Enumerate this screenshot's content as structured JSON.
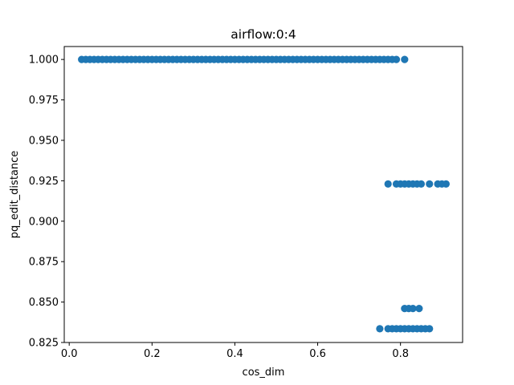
{
  "chart_data": {
    "type": "scatter",
    "title": "airflow:0:4",
    "xlabel": "cos_dim",
    "ylabel": "pq_edit_distance",
    "xlim": [
      -0.012,
      0.95
    ],
    "ylim": [
      0.825,
      1.008
    ],
    "grid": false,
    "legend": "none",
    "marker_color": "#1f77b4",
    "x_ticks": [
      {
        "value": 0.0,
        "label": "0.0"
      },
      {
        "value": 0.2,
        "label": "0.2"
      },
      {
        "value": 0.4,
        "label": "0.4"
      },
      {
        "value": 0.6,
        "label": "0.6"
      },
      {
        "value": 0.8,
        "label": "0.8"
      }
    ],
    "y_ticks": [
      {
        "value": 0.825,
        "label": "0.825"
      },
      {
        "value": 0.85,
        "label": "0.850"
      },
      {
        "value": 0.875,
        "label": "0.875"
      },
      {
        "value": 0.9,
        "label": "0.900"
      },
      {
        "value": 0.925,
        "label": "0.925"
      },
      {
        "value": 0.95,
        "label": "0.950"
      },
      {
        "value": 0.975,
        "label": "0.975"
      },
      {
        "value": 1.0,
        "label": "1.000"
      }
    ],
    "series": [
      {
        "points": [
          [
            0.03,
            1.0
          ],
          [
            0.04,
            1.0
          ],
          [
            0.05,
            1.0
          ],
          [
            0.06,
            1.0
          ],
          [
            0.07,
            1.0
          ],
          [
            0.08,
            1.0
          ],
          [
            0.09,
            1.0
          ],
          [
            0.1,
            1.0
          ],
          [
            0.11,
            1.0
          ],
          [
            0.12,
            1.0
          ],
          [
            0.13,
            1.0
          ],
          [
            0.14,
            1.0
          ],
          [
            0.15,
            1.0
          ],
          [
            0.16,
            1.0
          ],
          [
            0.17,
            1.0
          ],
          [
            0.18,
            1.0
          ],
          [
            0.19,
            1.0
          ],
          [
            0.2,
            1.0
          ],
          [
            0.21,
            1.0
          ],
          [
            0.22,
            1.0
          ],
          [
            0.23,
            1.0
          ],
          [
            0.24,
            1.0
          ],
          [
            0.25,
            1.0
          ],
          [
            0.26,
            1.0
          ],
          [
            0.27,
            1.0
          ],
          [
            0.28,
            1.0
          ],
          [
            0.29,
            1.0
          ],
          [
            0.3,
            1.0
          ],
          [
            0.31,
            1.0
          ],
          [
            0.32,
            1.0
          ],
          [
            0.33,
            1.0
          ],
          [
            0.34,
            1.0
          ],
          [
            0.35,
            1.0
          ],
          [
            0.36,
            1.0
          ],
          [
            0.37,
            1.0
          ],
          [
            0.38,
            1.0
          ],
          [
            0.39,
            1.0
          ],
          [
            0.4,
            1.0
          ],
          [
            0.41,
            1.0
          ],
          [
            0.42,
            1.0
          ],
          [
            0.43,
            1.0
          ],
          [
            0.44,
            1.0
          ],
          [
            0.45,
            1.0
          ],
          [
            0.46,
            1.0
          ],
          [
            0.47,
            1.0
          ],
          [
            0.48,
            1.0
          ],
          [
            0.49,
            1.0
          ],
          [
            0.5,
            1.0
          ],
          [
            0.51,
            1.0
          ],
          [
            0.52,
            1.0
          ],
          [
            0.53,
            1.0
          ],
          [
            0.54,
            1.0
          ],
          [
            0.55,
            1.0
          ],
          [
            0.56,
            1.0
          ],
          [
            0.57,
            1.0
          ],
          [
            0.58,
            1.0
          ],
          [
            0.59,
            1.0
          ],
          [
            0.6,
            1.0
          ],
          [
            0.61,
            1.0
          ],
          [
            0.62,
            1.0
          ],
          [
            0.63,
            1.0
          ],
          [
            0.64,
            1.0
          ],
          [
            0.65,
            1.0
          ],
          [
            0.66,
            1.0
          ],
          [
            0.67,
            1.0
          ],
          [
            0.68,
            1.0
          ],
          [
            0.69,
            1.0
          ],
          [
            0.7,
            1.0
          ],
          [
            0.71,
            1.0
          ],
          [
            0.72,
            1.0
          ],
          [
            0.73,
            1.0
          ],
          [
            0.74,
            1.0
          ],
          [
            0.75,
            1.0
          ],
          [
            0.76,
            1.0
          ],
          [
            0.77,
            1.0
          ],
          [
            0.78,
            1.0
          ],
          [
            0.79,
            1.0
          ],
          [
            0.81,
            1.0
          ],
          [
            0.77,
            0.923
          ],
          [
            0.79,
            0.923
          ],
          [
            0.8,
            0.923
          ],
          [
            0.81,
            0.923
          ],
          [
            0.82,
            0.923
          ],
          [
            0.83,
            0.923
          ],
          [
            0.84,
            0.923
          ],
          [
            0.85,
            0.923
          ],
          [
            0.87,
            0.923
          ],
          [
            0.89,
            0.923
          ],
          [
            0.9,
            0.923
          ],
          [
            0.91,
            0.923
          ],
          [
            0.81,
            0.846
          ],
          [
            0.82,
            0.846
          ],
          [
            0.83,
            0.846
          ],
          [
            0.845,
            0.846
          ],
          [
            0.75,
            0.8335
          ],
          [
            0.77,
            0.8335
          ],
          [
            0.78,
            0.8335
          ],
          [
            0.79,
            0.8335
          ],
          [
            0.8,
            0.8335
          ],
          [
            0.81,
            0.8335
          ],
          [
            0.82,
            0.8335
          ],
          [
            0.83,
            0.8335
          ],
          [
            0.84,
            0.8335
          ],
          [
            0.85,
            0.8335
          ],
          [
            0.86,
            0.8335
          ],
          [
            0.87,
            0.8335
          ]
        ]
      }
    ]
  }
}
